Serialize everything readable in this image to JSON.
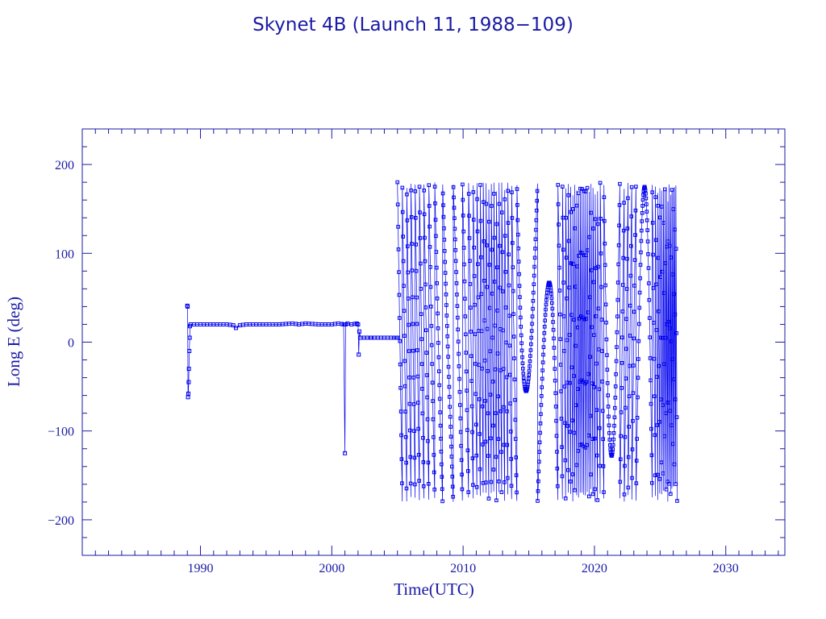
{
  "chart_data": {
    "type": "line",
    "title": "Skynet 4B (Launch 11, 1988−109)",
    "xlabel": "Time(UTC)",
    "ylabel": "Long E (deg)",
    "xlim": [
      1981,
      2034.5
    ],
    "ylim": [
      -240,
      240
    ],
    "x_ticks": [
      1990,
      2000,
      2010,
      2020,
      2030
    ],
    "x_tick_labels": [
      "1990",
      "2000",
      "2010",
      "2020",
      "2030"
    ],
    "y_ticks": [
      -200,
      -100,
      0,
      100,
      200
    ],
    "y_tick_labels": [
      "−200",
      "−100",
      "0",
      "100",
      "200"
    ],
    "grid": false,
    "legend": "none",
    "color": "#0000ee",
    "series": [
      {
        "x": [
          1989.0,
          1989.02,
          1989.05,
          1989.08,
          1989.1,
          1989.12,
          1989.15,
          1989.18,
          1989.2,
          1989.25,
          1989.5,
          1990.0,
          1990.5,
          1991.0,
          1991.5,
          1992.0,
          1992.5,
          1992.7,
          1993.0,
          1993.5,
          1994.0,
          1995.0,
          1996.0,
          1997.0,
          1997.5,
          1998.0,
          1999.0,
          2000.0,
          2000.5,
          2000.9,
          2001.0,
          2001.05,
          2001.2,
          2001.5,
          2001.9,
          2002.0,
          2002.05,
          2002.1,
          2002.2,
          2003.0,
          2004.0,
          2004.9,
          2005.0
        ],
        "y": [
          41,
          40,
          -62,
          -58,
          -45,
          -30,
          -10,
          5,
          18,
          20,
          20,
          20,
          20,
          20,
          20,
          20,
          19,
          16,
          19,
          20,
          20,
          20,
          20,
          21,
          20,
          21,
          20,
          20,
          21,
          20,
          -125,
          20,
          21,
          20,
          21,
          20,
          -14,
          12,
          5,
          5,
          5,
          5,
          5
        ]
      }
    ],
    "drift_phase": {
      "x_start": 2005.0,
      "x_end": 2026.3,
      "y_range": [
        -180,
        180
      ],
      "cycles_per_year": 2.6
    }
  }
}
